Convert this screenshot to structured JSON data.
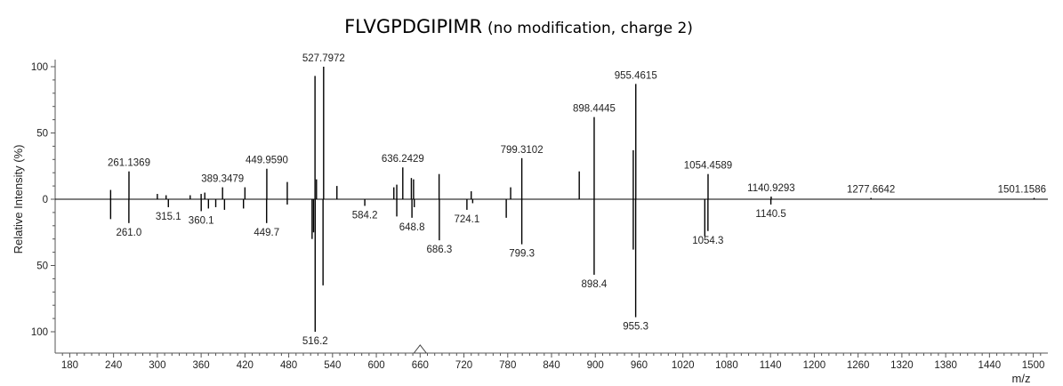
{
  "chart_data": {
    "type": "bar",
    "title": "FLVGPDGIPIMR",
    "subtitle": "(no modification, charge 2)",
    "xlabel": "m/z",
    "ylabel": "Relative Intensity (%)",
    "xlim": [
      160,
      1520
    ],
    "ylim": [
      -100,
      100
    ],
    "xticks": [
      180,
      240,
      300,
      360,
      420,
      480,
      540,
      600,
      660,
      720,
      780,
      840,
      900,
      960,
      1020,
      1080,
      1140,
      1200,
      1260,
      1320,
      1380,
      1440,
      1500
    ],
    "yticks": [
      {
        "value": 100,
        "label": "100"
      },
      {
        "value": 50,
        "label": "50"
      },
      {
        "value": 0,
        "label": "0"
      },
      {
        "value": -50,
        "label": "50"
      },
      {
        "value": -100,
        "label": "100"
      }
    ],
    "precursor_marker_mz": 660,
    "series": [
      {
        "direction": "up",
        "labeled_peaks": [
          {
            "mz": 261.1369,
            "intensity": 21,
            "label": "261.1369"
          },
          {
            "mz": 389.3479,
            "intensity": 9,
            "label": "389.3479"
          },
          {
            "mz": 449.959,
            "intensity": 23,
            "label": "449.9590"
          },
          {
            "mz": 527.7972,
            "intensity": 100,
            "label": "527.7972"
          },
          {
            "mz": 636.2429,
            "intensity": 24,
            "label": "636.2429"
          },
          {
            "mz": 799.3102,
            "intensity": 31,
            "label": "799.3102"
          },
          {
            "mz": 898.4445,
            "intensity": 62,
            "label": "898.4445"
          },
          {
            "mz": 955.4615,
            "intensity": 87,
            "label": "955.4615"
          },
          {
            "mz": 1054.4589,
            "intensity": 19,
            "label": "1054.4589"
          },
          {
            "mz": 1140.9293,
            "intensity": 2,
            "label": "1140.9293"
          },
          {
            "mz": 1277.6642,
            "intensity": 1,
            "label": "1277.6642"
          },
          {
            "mz": 1501.1586,
            "intensity": 1,
            "label": "1501.1586"
          }
        ],
        "other_peaks": [
          {
            "mz": 236,
            "intensity": 7
          },
          {
            "mz": 300,
            "intensity": 4
          },
          {
            "mz": 312,
            "intensity": 3
          },
          {
            "mz": 345,
            "intensity": 3
          },
          {
            "mz": 360,
            "intensity": 4
          },
          {
            "mz": 365,
            "intensity": 5
          },
          {
            "mz": 420,
            "intensity": 9
          },
          {
            "mz": 478,
            "intensity": 13
          },
          {
            "mz": 516,
            "intensity": 93
          },
          {
            "mz": 518,
            "intensity": 15
          },
          {
            "mz": 546,
            "intensity": 10
          },
          {
            "mz": 624,
            "intensity": 9
          },
          {
            "mz": 628,
            "intensity": 11
          },
          {
            "mz": 648,
            "intensity": 16
          },
          {
            "mz": 651,
            "intensity": 15
          },
          {
            "mz": 686,
            "intensity": 19
          },
          {
            "mz": 730,
            "intensity": 6
          },
          {
            "mz": 784,
            "intensity": 9
          },
          {
            "mz": 878,
            "intensity": 21
          },
          {
            "mz": 952,
            "intensity": 37
          }
        ]
      },
      {
        "direction": "down",
        "labeled_peaks": [
          {
            "mz": 261.0,
            "intensity": 18,
            "label": "261.0"
          },
          {
            "mz": 315.1,
            "intensity": 6,
            "label": "315.1"
          },
          {
            "mz": 360.1,
            "intensity": 9,
            "label": "360.1"
          },
          {
            "mz": 449.7,
            "intensity": 18,
            "label": "449.7"
          },
          {
            "mz": 516.2,
            "intensity": 100,
            "label": "516.2"
          },
          {
            "mz": 584.2,
            "intensity": 5,
            "label": "584.2"
          },
          {
            "mz": 648.8,
            "intensity": 14,
            "label": "648.8"
          },
          {
            "mz": 686.3,
            "intensity": 31,
            "label": "686.3"
          },
          {
            "mz": 724.1,
            "intensity": 8,
            "label": "724.1"
          },
          {
            "mz": 799.3,
            "intensity": 34,
            "label": "799.3"
          },
          {
            "mz": 898.4,
            "intensity": 57,
            "label": "898.4"
          },
          {
            "mz": 955.3,
            "intensity": 89,
            "label": "955.3"
          },
          {
            "mz": 1054.3,
            "intensity": 24,
            "label": "1054.3"
          },
          {
            "mz": 1140.5,
            "intensity": 4,
            "label": "1140.5"
          }
        ],
        "other_peaks": [
          {
            "mz": 236,
            "intensity": 15
          },
          {
            "mz": 370,
            "intensity": 7
          },
          {
            "mz": 380,
            "intensity": 6
          },
          {
            "mz": 392,
            "intensity": 8
          },
          {
            "mz": 418,
            "intensity": 7
          },
          {
            "mz": 478,
            "intensity": 4
          },
          {
            "mz": 512,
            "intensity": 30
          },
          {
            "mz": 514,
            "intensity": 25
          },
          {
            "mz": 527,
            "intensity": 65
          },
          {
            "mz": 628,
            "intensity": 13
          },
          {
            "mz": 652,
            "intensity": 6
          },
          {
            "mz": 732,
            "intensity": 3
          },
          {
            "mz": 778,
            "intensity": 14
          },
          {
            "mz": 952,
            "intensity": 38
          },
          {
            "mz": 1050,
            "intensity": 28
          }
        ]
      }
    ]
  }
}
